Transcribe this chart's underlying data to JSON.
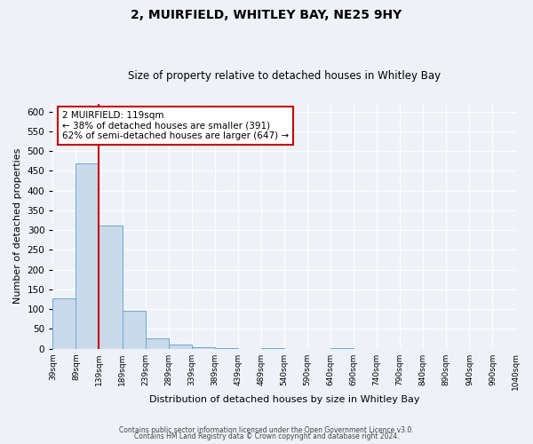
{
  "title": "2, MUIRFIELD, WHITLEY BAY, NE25 9HY",
  "subtitle": "Size of property relative to detached houses in Whitley Bay",
  "xlabel": "Distribution of detached houses by size in Whitley Bay",
  "ylabel": "Number of detached properties",
  "bar_color": "#c9daea",
  "bar_edge_color": "#6aaad4",
  "background_color": "#eef2f8",
  "grid_color": "#ffffff",
  "bins": [
    "39sqm",
    "89sqm",
    "139sqm",
    "189sqm",
    "239sqm",
    "289sqm",
    "339sqm",
    "389sqm",
    "439sqm",
    "489sqm",
    "540sqm",
    "590sqm",
    "640sqm",
    "690sqm",
    "740sqm",
    "790sqm",
    "840sqm",
    "890sqm",
    "940sqm",
    "990sqm",
    "1040sqm"
  ],
  "counts": [
    128,
    470,
    311,
    96,
    27,
    11,
    3,
    2,
    0,
    2,
    0,
    0,
    2,
    0,
    0,
    0,
    0,
    0,
    0,
    0,
    2
  ],
  "ylim": [
    0,
    620
  ],
  "yticks": [
    0,
    50,
    100,
    150,
    200,
    250,
    300,
    350,
    400,
    450,
    500,
    550,
    600
  ],
  "property_label": "2 MUIRFIELD: 119sqm",
  "annotation_line1": "← 38% of detached houses are smaller (391)",
  "annotation_line2": "62% of semi-detached houses are larger (647) →",
  "vline_x": 2,
  "vline_color": "#cc0000",
  "annotation_box_color": "#ffffff",
  "annotation_box_edge": "#cc0000",
  "footer_line1": "Contains HM Land Registry data © Crown copyright and database right 2024.",
  "footer_line2": "Contains public sector information licensed under the Open Government Licence v3.0."
}
